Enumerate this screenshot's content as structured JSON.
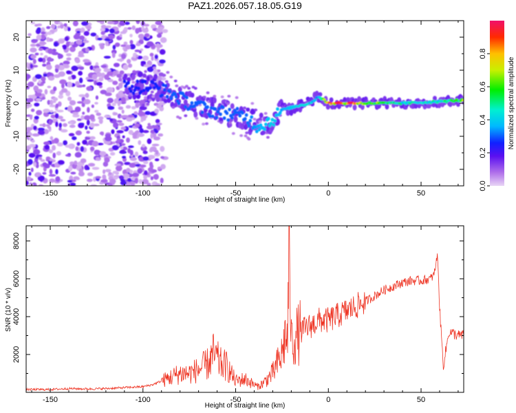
{
  "figure_title": "PAZ1.2026.057.18.05.G19",
  "chart_data": [
    {
      "type": "heatmap",
      "title": "PAZ1.2026.057.18.05.G19",
      "xlabel": "Height of straight line (km)",
      "ylabel": "Frequency (Hz)",
      "xlim": [
        -163,
        73
      ],
      "ylim": [
        -25,
        25
      ],
      "x_ticks": [
        -150,
        -100,
        -50,
        0,
        50
      ],
      "y_ticks": [
        -20,
        -10,
        0,
        10,
        20
      ],
      "colorbar": {
        "label": "Normalized spectral amplitude",
        "range": [
          0,
          1
        ],
        "ticks": [
          0.0,
          0.2,
          0.4,
          0.6,
          0.8
        ],
        "tick_labels": [
          "0.0",
          "0.2",
          "0.4",
          "0.6",
          "0.8"
        ]
      },
      "ridge": {
        "x": [
          -95,
          -85,
          -75,
          -65,
          -55,
          -45,
          -38,
          -30,
          -25,
          -18,
          -10,
          -5,
          0,
          20,
          40,
          60,
          73
        ],
        "frequency": [
          5,
          3,
          0,
          -2,
          -3,
          -4,
          -7,
          -5,
          -2,
          -1,
          0,
          2,
          0,
          0,
          0,
          0.5,
          1
        ],
        "amplitude": [
          0.25,
          0.3,
          0.3,
          0.3,
          0.3,
          0.3,
          0.35,
          0.4,
          0.35,
          0.4,
          0.45,
          0.45,
          0.95,
          0.75,
          0.5,
          0.5,
          0.7
        ]
      },
      "scatter_region": {
        "x_range": [
          -163,
          -88
        ],
        "frequency_range": [
          -25,
          25
        ],
        "amplitude": 0.1
      }
    },
    {
      "type": "line",
      "title": "",
      "xlabel": "Height of straight line (km)",
      "ylabel": "SNR (10 * v/v)",
      "xlim": [
        -163,
        73
      ],
      "ylim": [
        0,
        8800
      ],
      "x_ticks": [
        -150,
        -100,
        -50,
        0,
        50
      ],
      "y_ticks": [
        2000,
        4000,
        6000,
        8000
      ],
      "series": [
        {
          "name": "SNR",
          "color": "#ee3322",
          "x": [
            -163,
            -150,
            -140,
            -130,
            -120,
            -110,
            -100,
            -95,
            -90,
            -85,
            -80,
            -75,
            -70,
            -65,
            -62,
            -58,
            -55,
            -50,
            -45,
            -40,
            -38,
            -35,
            -32,
            -30,
            -28,
            -26,
            -25,
            -24,
            -23,
            -22,
            -21,
            -20,
            -18,
            -15,
            -12,
            -10,
            -8,
            -5,
            0,
            10,
            20,
            30,
            40,
            45,
            50,
            55,
            57,
            58,
            59,
            60,
            62,
            65,
            70,
            73
          ],
          "values": [
            150,
            150,
            200,
            180,
            200,
            250,
            300,
            400,
            600,
            800,
            1000,
            1000,
            1200,
            1500,
            2000,
            1500,
            1400,
            600,
            700,
            400,
            300,
            500,
            800,
            1000,
            1400,
            1800,
            2000,
            2600,
            3000,
            2800,
            8700,
            2700,
            2900,
            3200,
            3400,
            3500,
            3600,
            3800,
            3800,
            4300,
            4800,
            5400,
            5800,
            5900,
            5900,
            6000,
            6200,
            6800,
            7200,
            4500,
            1400,
            3200,
            3000,
            3000
          ]
        }
      ]
    }
  ]
}
